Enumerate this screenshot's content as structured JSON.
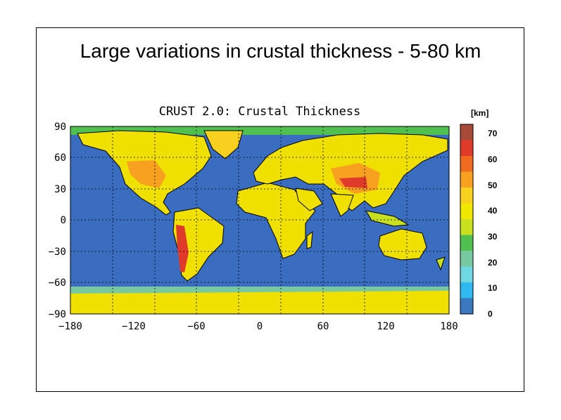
{
  "slide_title": "Large variations in crustal thickness - 5-80 km",
  "plot_title": "CRUST 2.0: Crustal Thickness",
  "colorbar": {
    "unit": "[km]",
    "tick_labels": [
      "70",
      "60",
      "50",
      "40",
      "30",
      "20",
      "10",
      "0"
    ],
    "colors": [
      "#a84a3a",
      "#e03a2a",
      "#f06a20",
      "#f8a020",
      "#f8d020",
      "#f0e800",
      "#c8e020",
      "#50c050",
      "#78c8a0",
      "#70d8e0",
      "#30b8f0",
      "#3a78c0"
    ]
  },
  "map": {
    "projection": "cylindrical equidistant",
    "lon_range": [
      -180,
      180
    ],
    "lat_range": [
      -90,
      90
    ],
    "lon_tick_labels": [
      "−180",
      "−120",
      "−60",
      "0",
      "60",
      "120",
      "180"
    ],
    "lon_ticks": [
      -180,
      -120,
      -60,
      0,
      60,
      120,
      180
    ],
    "lat_tick_labels": [
      "90",
      "60",
      "30",
      "0",
      "−30",
      "−60",
      "−90"
    ],
    "lat_ticks": [
      90,
      60,
      30,
      0,
      -30,
      -60,
      -90
    ],
    "gridlines": "dotted",
    "ocean_color": "#3a6cc0",
    "land_color": "#f0e000"
  }
}
